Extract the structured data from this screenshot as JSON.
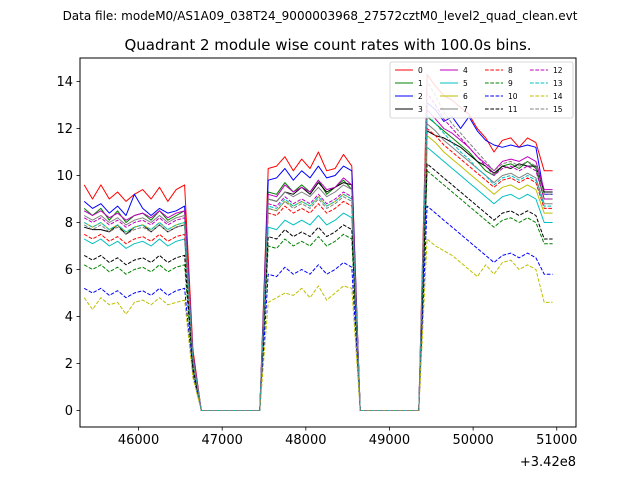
{
  "chart_data": {
    "type": "line",
    "suptitle": "Data file: modeM0/AS1A09_038T24_9000003968_27572cztM0_level2_quad_clean.evt",
    "title": "Quadrant 2 module wise count rates with 100.0s bins.",
    "xlabel": "",
    "ylabel": "",
    "x_offset_label": "+3.42e8",
    "xlim": [
      45300,
      51230
    ],
    "ylim": [
      -0.7,
      15
    ],
    "xticks": [
      46000,
      47000,
      48000,
      49000,
      50000,
      51000
    ],
    "xtick_labels": [
      "46000",
      "47000",
      "48000",
      "49000",
      "50000",
      "51000"
    ],
    "yticks": [
      0,
      2,
      4,
      6,
      8,
      10,
      12,
      14
    ],
    "ytick_labels": [
      "0",
      "2",
      "4",
      "6",
      "8",
      "10",
      "12",
      "14"
    ],
    "grid": false,
    "legend_placement": "top-right",
    "x": [
      45350,
      45450,
      45550,
      45650,
      45750,
      45850,
      45950,
      46050,
      46150,
      46250,
      46350,
      46450,
      46550,
      46650,
      46750,
      46850,
      46950,
      47050,
      47150,
      47250,
      47350,
      47450,
      47550,
      47650,
      47750,
      47850,
      47950,
      48050,
      48150,
      48250,
      48350,
      48450,
      48550,
      48650,
      48750,
      48850,
      48950,
      49050,
      49150,
      49250,
      49350,
      49450,
      49550,
      49650,
      49750,
      49850,
      49950,
      50050,
      50150,
      50250,
      50350,
      50450,
      50550,
      50650,
      50750,
      50850,
      50950
    ],
    "series": [
      {
        "name": "0",
        "color": "#ff0000",
        "dash": "solid",
        "values": [
          9.6,
          9.0,
          9.6,
          9.0,
          9.3,
          8.9,
          9.2,
          9.4,
          9.0,
          9.5,
          8.9,
          9.4,
          9.6,
          2.6,
          0,
          0,
          0,
          0,
          0,
          0,
          0,
          0,
          10.3,
          10.4,
          10.8,
          10.2,
          10.7,
          10.3,
          11.0,
          10.2,
          10.3,
          10.9,
          10.4,
          0,
          0,
          0,
          0,
          0,
          0,
          0,
          0,
          14.3,
          13.8,
          13.4,
          13.2,
          12.9,
          12.6,
          12.0,
          11.6,
          11.0,
          11.5,
          11.6,
          11.2,
          11.6,
          11.4,
          10.2,
          10.2
        ]
      },
      {
        "name": "1",
        "color": "#008000",
        "dash": "solid",
        "values": [
          8.6,
          8.3,
          8.6,
          8.1,
          8.5,
          8.0,
          8.3,
          8.4,
          8.1,
          8.5,
          8.1,
          8.3,
          8.5,
          2.3,
          0,
          0,
          0,
          0,
          0,
          0,
          0,
          0,
          9.3,
          9.2,
          9.7,
          9.3,
          9.6,
          9.3,
          9.8,
          9.2,
          9.5,
          9.8,
          9.4,
          0,
          0,
          0,
          0,
          0,
          0,
          0,
          0,
          12.5,
          12.2,
          11.9,
          11.6,
          11.3,
          11.0,
          10.6,
          10.2,
          10.0,
          10.4,
          10.5,
          10.3,
          10.6,
          10.3,
          9.0,
          9.0
        ]
      },
      {
        "name": "2",
        "color": "#0000ff",
        "dash": "solid",
        "values": [
          8.9,
          8.6,
          8.8,
          8.4,
          8.7,
          8.3,
          9.2,
          8.6,
          8.3,
          8.6,
          8.4,
          8.5,
          8.7,
          2.4,
          0,
          0,
          0,
          0,
          0,
          0,
          0,
          0,
          9.8,
          9.9,
          10.3,
          9.8,
          10.2,
          9.9,
          10.4,
          9.9,
          10.0,
          10.4,
          10.2,
          0,
          0,
          0,
          0,
          0,
          0,
          0,
          0,
          13.1,
          12.8,
          12.3,
          12.5,
          12.0,
          12.5,
          11.9,
          11.5,
          11.3,
          11.2,
          11.3,
          11.2,
          11.3,
          11.2,
          9.2,
          9.2
        ]
      },
      {
        "name": "3",
        "color": "#000000",
        "dash": "solid",
        "values": [
          7.8,
          7.7,
          7.7,
          7.6,
          7.9,
          7.5,
          7.8,
          7.9,
          7.6,
          7.9,
          7.6,
          7.8,
          7.9,
          2.1,
          0,
          0,
          0,
          0,
          0,
          0,
          0,
          0,
          9.0,
          8.9,
          9.3,
          9.2,
          9.5,
          9.2,
          9.7,
          9.3,
          9.5,
          9.7,
          9.6,
          0,
          0,
          0,
          0,
          0,
          0,
          0,
          0,
          11.9,
          11.7,
          11.6,
          11.4,
          11.2,
          10.9,
          10.6,
          10.4,
          10.1,
          10.4,
          10.3,
          10.5,
          10.4,
          10.4,
          9.3,
          9.3
        ]
      },
      {
        "name": "4",
        "color": "#bf00bf",
        "dash": "solid",
        "values": [
          8.5,
          8.3,
          8.5,
          8.2,
          8.4,
          8.1,
          8.3,
          8.4,
          8.2,
          8.5,
          8.2,
          8.4,
          8.5,
          2.3,
          0,
          0,
          0,
          0,
          0,
          0,
          0,
          0,
          9.2,
          9.1,
          9.6,
          9.3,
          9.5,
          9.3,
          9.8,
          9.4,
          9.5,
          9.9,
          9.6,
          0,
          0,
          0,
          0,
          0,
          0,
          0,
          0,
          12.8,
          12.4,
          12.0,
          11.8,
          11.5,
          11.2,
          10.8,
          10.5,
          10.2,
          10.6,
          10.7,
          10.6,
          10.8,
          10.6,
          9.4,
          9.4
        ]
      },
      {
        "name": "5",
        "color": "#00bfbf",
        "dash": "solid",
        "values": [
          7.3,
          7.1,
          7.3,
          7.0,
          7.2,
          6.9,
          7.1,
          7.2,
          7.0,
          7.3,
          7.0,
          7.2,
          7.3,
          2.0,
          0,
          0,
          0,
          0,
          0,
          0,
          0,
          0,
          7.8,
          7.7,
          8.1,
          7.9,
          8.1,
          7.9,
          8.3,
          7.9,
          8.1,
          8.4,
          8.2,
          0,
          0,
          0,
          0,
          0,
          0,
          0,
          0,
          11.2,
          10.9,
          10.6,
          10.3,
          10.0,
          9.7,
          9.4,
          9.1,
          8.8,
          9.1,
          9.2,
          9.0,
          9.2,
          9.0,
          8.0,
          8.0
        ]
      },
      {
        "name": "6",
        "color": "#bfbf00",
        "dash": "solid",
        "values": [
          8.0,
          7.8,
          8.0,
          7.7,
          7.9,
          7.6,
          7.8,
          7.9,
          7.7,
          8.0,
          7.7,
          7.9,
          8.0,
          2.2,
          0,
          0,
          0,
          0,
          0,
          0,
          0,
          0,
          8.6,
          8.5,
          8.9,
          8.7,
          8.9,
          8.7,
          9.1,
          8.7,
          8.9,
          9.2,
          9.0,
          0,
          0,
          0,
          0,
          0,
          0,
          0,
          0,
          11.7,
          11.4,
          11.0,
          10.7,
          10.4,
          10.1,
          9.8,
          9.5,
          9.2,
          9.5,
          9.6,
          9.4,
          9.6,
          9.4,
          8.4,
          8.4
        ]
      },
      {
        "name": "7",
        "color": "#808080",
        "dash": "solid",
        "values": [
          8.3,
          8.1,
          8.3,
          8.0,
          8.2,
          7.9,
          8.1,
          8.2,
          8.0,
          8.3,
          8.0,
          8.2,
          8.3,
          2.3,
          0,
          0,
          0,
          0,
          0,
          0,
          0,
          0,
          9.0,
          8.9,
          9.3,
          9.1,
          9.3,
          9.1,
          9.5,
          9.1,
          9.3,
          9.6,
          9.4,
          0,
          0,
          0,
          0,
          0,
          0,
          0,
          0,
          12.2,
          11.9,
          11.5,
          11.2,
          10.9,
          10.6,
          10.3,
          10.0,
          9.7,
          10.0,
          10.1,
          9.9,
          10.1,
          9.9,
          8.8,
          8.8
        ]
      },
      {
        "name": "8",
        "color": "#ff0000",
        "dash": "dashed",
        "values": [
          7.5,
          7.3,
          7.5,
          7.2,
          7.4,
          7.1,
          7.3,
          7.4,
          7.2,
          7.5,
          7.2,
          7.4,
          7.5,
          2.1,
          0,
          0,
          0,
          0,
          0,
          0,
          0,
          0,
          8.4,
          8.3,
          8.7,
          8.4,
          8.6,
          8.4,
          8.8,
          8.4,
          8.6,
          8.9,
          8.7,
          0,
          0,
          0,
          0,
          0,
          0,
          0,
          0,
          12.0,
          11.7,
          11.3,
          11.0,
          10.7,
          10.4,
          10.1,
          9.8,
          9.5,
          9.8,
          9.9,
          9.7,
          9.9,
          9.7,
          8.6,
          8.6
        ]
      },
      {
        "name": "9",
        "color": "#008000",
        "dash": "dashed",
        "values": [
          6.2,
          6.0,
          6.2,
          5.9,
          6.1,
          5.8,
          6.0,
          6.1,
          5.9,
          6.2,
          5.9,
          6.1,
          6.2,
          1.7,
          0,
          0,
          0,
          0,
          0,
          0,
          0,
          0,
          7.0,
          6.9,
          7.3,
          7.0,
          7.2,
          7.0,
          7.4,
          7.0,
          7.2,
          7.5,
          7.3,
          0,
          0,
          0,
          0,
          0,
          0,
          0,
          0,
          10.2,
          9.9,
          9.6,
          9.3,
          9.0,
          8.7,
          8.4,
          8.1,
          7.8,
          8.1,
          8.2,
          8.0,
          8.2,
          8.0,
          7.1,
          7.1
        ]
      },
      {
        "name": "10",
        "color": "#0000ff",
        "dash": "dashed",
        "values": [
          5.2,
          5.0,
          5.2,
          4.9,
          5.1,
          4.8,
          5.0,
          5.1,
          4.9,
          5.2,
          4.9,
          5.1,
          5.2,
          1.5,
          0,
          0,
          0,
          0,
          0,
          0,
          0,
          0,
          5.8,
          5.7,
          6.1,
          5.8,
          6.0,
          5.8,
          6.2,
          5.8,
          6.0,
          6.3,
          6.1,
          0,
          0,
          0,
          0,
          0,
          0,
          0,
          0,
          8.7,
          8.4,
          8.1,
          7.8,
          7.5,
          7.2,
          6.9,
          6.6,
          6.3,
          6.6,
          6.7,
          6.5,
          6.7,
          6.5,
          5.8,
          5.8
        ]
      },
      {
        "name": "11",
        "color": "#000000",
        "dash": "dashed",
        "values": [
          6.6,
          6.4,
          6.6,
          6.3,
          6.5,
          6.2,
          6.4,
          6.5,
          6.3,
          6.6,
          6.3,
          6.5,
          6.6,
          1.8,
          0,
          0,
          0,
          0,
          0,
          0,
          0,
          0,
          7.4,
          7.3,
          7.7,
          7.4,
          7.6,
          7.4,
          7.8,
          7.4,
          7.6,
          7.9,
          7.7,
          0,
          0,
          0,
          0,
          0,
          0,
          0,
          0,
          10.5,
          10.2,
          9.9,
          9.6,
          9.3,
          9.0,
          8.7,
          8.4,
          8.1,
          8.4,
          8.5,
          8.3,
          8.5,
          8.3,
          7.3,
          7.3
        ]
      },
      {
        "name": "12",
        "color": "#bf00bf",
        "dash": "dashed",
        "values": [
          8.2,
          8.0,
          8.2,
          7.9,
          8.1,
          7.8,
          8.0,
          8.1,
          7.9,
          8.2,
          7.9,
          8.1,
          8.2,
          2.3,
          0,
          0,
          0,
          0,
          0,
          0,
          0,
          0,
          8.8,
          8.7,
          9.1,
          8.8,
          9.0,
          8.8,
          9.2,
          8.8,
          9.0,
          9.3,
          9.1,
          0,
          0,
          0,
          0,
          0,
          0,
          0,
          0,
          13.5,
          13.0,
          12.4,
          12.0,
          11.6,
          11.2,
          10.8,
          10.4,
          10.0,
          10.3,
          10.4,
          10.2,
          10.4,
          10.2,
          9.0,
          9.0
        ]
      },
      {
        "name": "13",
        "color": "#00bfbf",
        "dash": "dashed",
        "values": [
          8.0,
          7.8,
          8.0,
          7.7,
          7.9,
          7.6,
          7.8,
          7.9,
          7.7,
          8.0,
          7.7,
          7.9,
          8.0,
          2.2,
          0,
          0,
          0,
          0,
          0,
          0,
          0,
          0,
          8.7,
          8.6,
          9.0,
          8.7,
          8.9,
          8.7,
          9.1,
          8.7,
          8.9,
          9.2,
          9.0,
          0,
          0,
          0,
          0,
          0,
          0,
          0,
          0,
          12.6,
          12.2,
          11.8,
          11.4,
          11.0,
          10.7,
          10.3,
          10.0,
          9.6,
          9.9,
          10.0,
          9.8,
          10.0,
          9.8,
          8.7,
          8.7
        ]
      },
      {
        "name": "14",
        "color": "#bfbf00",
        "dash": "dashed",
        "values": [
          4.8,
          4.3,
          4.8,
          4.5,
          4.6,
          4.1,
          4.6,
          4.7,
          4.5,
          4.8,
          4.5,
          4.6,
          4.7,
          1.4,
          0,
          0,
          0,
          0,
          0,
          0,
          0,
          0,
          4.6,
          4.8,
          5.0,
          4.9,
          5.2,
          4.8,
          5.3,
          4.7,
          5.0,
          5.3,
          5.2,
          0,
          0,
          0,
          0,
          0,
          0,
          0,
          0,
          7.3,
          7.0,
          6.8,
          6.6,
          6.3,
          6.0,
          5.7,
          6.2,
          5.8,
          6.3,
          6.4,
          6.0,
          6.2,
          6.0,
          4.6,
          4.6
        ]
      },
      {
        "name": "15",
        "color": "#808080",
        "dash": "dashed",
        "values": [
          7.9,
          7.7,
          7.9,
          7.6,
          7.8,
          7.5,
          7.7,
          7.8,
          7.6,
          7.9,
          7.6,
          7.8,
          7.9,
          2.2,
          0,
          0,
          0,
          0,
          0,
          0,
          0,
          0,
          8.6,
          8.5,
          8.9,
          8.6,
          8.8,
          8.6,
          9.0,
          8.6,
          8.8,
          9.1,
          8.9,
          0,
          0,
          0,
          0,
          0,
          0,
          0,
          0,
          14.0,
          13.4,
          12.7,
          12.2,
          11.8,
          11.4,
          11.0,
          10.6,
          10.2,
          10.5,
          10.6,
          10.4,
          10.6,
          10.4,
          9.2,
          9.2
        ]
      }
    ]
  }
}
